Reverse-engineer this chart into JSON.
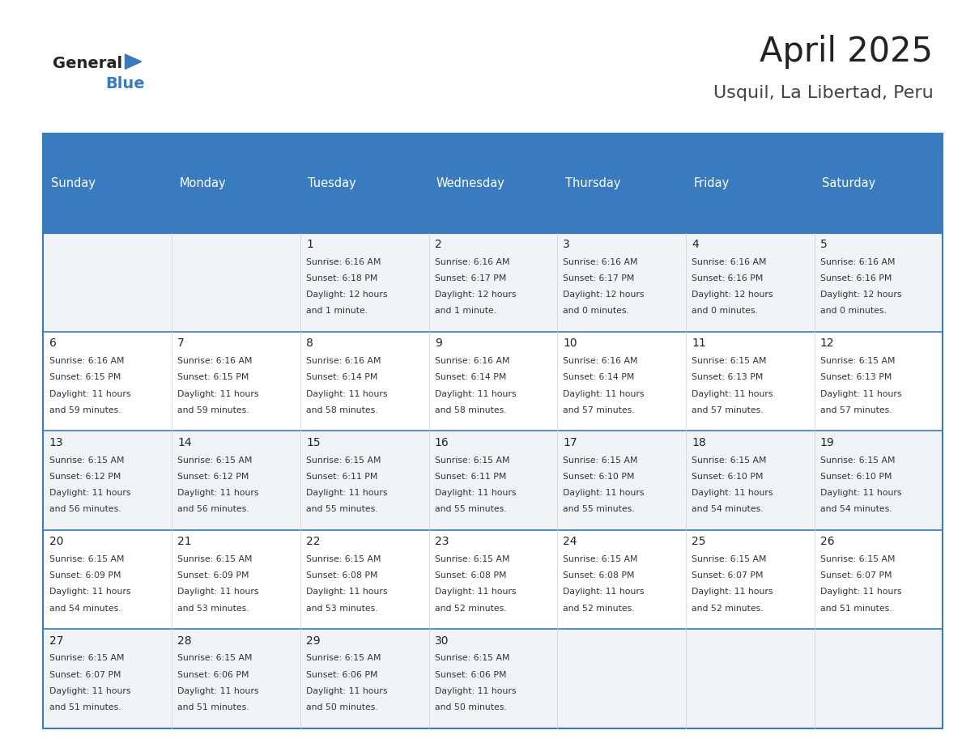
{
  "title": "April 2025",
  "subtitle": "Usquil, La Libertad, Peru",
  "header_bg": "#3a7abf",
  "header_text": "#ffffff",
  "row_bg_even": "#f0f4f8",
  "row_bg_odd": "#ffffff",
  "separator_color": "#3a7abf",
  "day_headers": [
    "Sunday",
    "Monday",
    "Tuesday",
    "Wednesday",
    "Thursday",
    "Friday",
    "Saturday"
  ],
  "days": [
    {
      "date": 1,
      "col": 2,
      "row": 0,
      "sunrise": "6:16 AM",
      "sunset": "6:18 PM",
      "daylight": "12 hours and 1 minute."
    },
    {
      "date": 2,
      "col": 3,
      "row": 0,
      "sunrise": "6:16 AM",
      "sunset": "6:17 PM",
      "daylight": "12 hours and 1 minute."
    },
    {
      "date": 3,
      "col": 4,
      "row": 0,
      "sunrise": "6:16 AM",
      "sunset": "6:17 PM",
      "daylight": "12 hours and 0 minutes."
    },
    {
      "date": 4,
      "col": 5,
      "row": 0,
      "sunrise": "6:16 AM",
      "sunset": "6:16 PM",
      "daylight": "12 hours and 0 minutes."
    },
    {
      "date": 5,
      "col": 6,
      "row": 0,
      "sunrise": "6:16 AM",
      "sunset": "6:16 PM",
      "daylight": "12 hours and 0 minutes."
    },
    {
      "date": 6,
      "col": 0,
      "row": 1,
      "sunrise": "6:16 AM",
      "sunset": "6:15 PM",
      "daylight": "11 hours and 59 minutes."
    },
    {
      "date": 7,
      "col": 1,
      "row": 1,
      "sunrise": "6:16 AM",
      "sunset": "6:15 PM",
      "daylight": "11 hours and 59 minutes."
    },
    {
      "date": 8,
      "col": 2,
      "row": 1,
      "sunrise": "6:16 AM",
      "sunset": "6:14 PM",
      "daylight": "11 hours and 58 minutes."
    },
    {
      "date": 9,
      "col": 3,
      "row": 1,
      "sunrise": "6:16 AM",
      "sunset": "6:14 PM",
      "daylight": "11 hours and 58 minutes."
    },
    {
      "date": 10,
      "col": 4,
      "row": 1,
      "sunrise": "6:16 AM",
      "sunset": "6:14 PM",
      "daylight": "11 hours and 57 minutes."
    },
    {
      "date": 11,
      "col": 5,
      "row": 1,
      "sunrise": "6:15 AM",
      "sunset": "6:13 PM",
      "daylight": "11 hours and 57 minutes."
    },
    {
      "date": 12,
      "col": 6,
      "row": 1,
      "sunrise": "6:15 AM",
      "sunset": "6:13 PM",
      "daylight": "11 hours and 57 minutes."
    },
    {
      "date": 13,
      "col": 0,
      "row": 2,
      "sunrise": "6:15 AM",
      "sunset": "6:12 PM",
      "daylight": "11 hours and 56 minutes."
    },
    {
      "date": 14,
      "col": 1,
      "row": 2,
      "sunrise": "6:15 AM",
      "sunset": "6:12 PM",
      "daylight": "11 hours and 56 minutes."
    },
    {
      "date": 15,
      "col": 2,
      "row": 2,
      "sunrise": "6:15 AM",
      "sunset": "6:11 PM",
      "daylight": "11 hours and 55 minutes."
    },
    {
      "date": 16,
      "col": 3,
      "row": 2,
      "sunrise": "6:15 AM",
      "sunset": "6:11 PM",
      "daylight": "11 hours and 55 minutes."
    },
    {
      "date": 17,
      "col": 4,
      "row": 2,
      "sunrise": "6:15 AM",
      "sunset": "6:10 PM",
      "daylight": "11 hours and 55 minutes."
    },
    {
      "date": 18,
      "col": 5,
      "row": 2,
      "sunrise": "6:15 AM",
      "sunset": "6:10 PM",
      "daylight": "11 hours and 54 minutes."
    },
    {
      "date": 19,
      "col": 6,
      "row": 2,
      "sunrise": "6:15 AM",
      "sunset": "6:10 PM",
      "daylight": "11 hours and 54 minutes."
    },
    {
      "date": 20,
      "col": 0,
      "row": 3,
      "sunrise": "6:15 AM",
      "sunset": "6:09 PM",
      "daylight": "11 hours and 54 minutes."
    },
    {
      "date": 21,
      "col": 1,
      "row": 3,
      "sunrise": "6:15 AM",
      "sunset": "6:09 PM",
      "daylight": "11 hours and 53 minutes."
    },
    {
      "date": 22,
      "col": 2,
      "row": 3,
      "sunrise": "6:15 AM",
      "sunset": "6:08 PM",
      "daylight": "11 hours and 53 minutes."
    },
    {
      "date": 23,
      "col": 3,
      "row": 3,
      "sunrise": "6:15 AM",
      "sunset": "6:08 PM",
      "daylight": "11 hours and 52 minutes."
    },
    {
      "date": 24,
      "col": 4,
      "row": 3,
      "sunrise": "6:15 AM",
      "sunset": "6:08 PM",
      "daylight": "11 hours and 52 minutes."
    },
    {
      "date": 25,
      "col": 5,
      "row": 3,
      "sunrise": "6:15 AM",
      "sunset": "6:07 PM",
      "daylight": "11 hours and 52 minutes."
    },
    {
      "date": 26,
      "col": 6,
      "row": 3,
      "sunrise": "6:15 AM",
      "sunset": "6:07 PM",
      "daylight": "11 hours and 51 minutes."
    },
    {
      "date": 27,
      "col": 0,
      "row": 4,
      "sunrise": "6:15 AM",
      "sunset": "6:07 PM",
      "daylight": "11 hours and 51 minutes."
    },
    {
      "date": 28,
      "col": 1,
      "row": 4,
      "sunrise": "6:15 AM",
      "sunset": "6:06 PM",
      "daylight": "11 hours and 51 minutes."
    },
    {
      "date": 29,
      "col": 2,
      "row": 4,
      "sunrise": "6:15 AM",
      "sunset": "6:06 PM",
      "daylight": "11 hours and 50 minutes."
    },
    {
      "date": 30,
      "col": 3,
      "row": 4,
      "sunrise": "6:15 AM",
      "sunset": "6:06 PM",
      "daylight": "11 hours and 50 minutes."
    }
  ],
  "n_rows": 5,
  "n_cols": 7,
  "logo_text_general": "General",
  "logo_text_blue": "Blue",
  "logo_color_general": "#222222",
  "logo_color_blue": "#3a7abf",
  "logo_triangle_color": "#3a7abf"
}
